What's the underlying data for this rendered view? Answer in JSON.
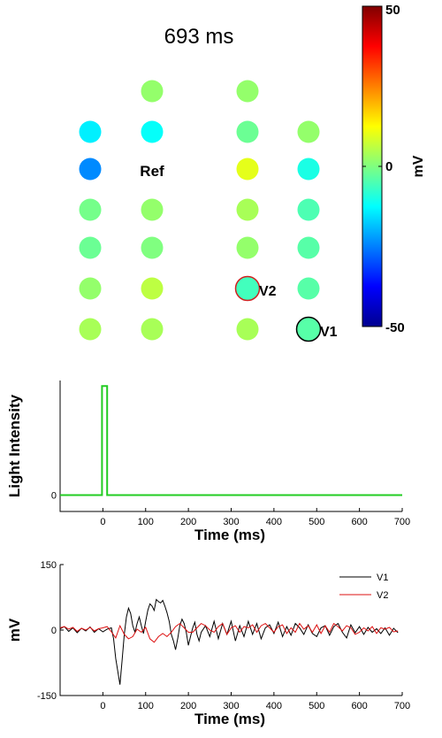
{
  "title": "693 ms",
  "electrode_map": {
    "ref_label": "Ref",
    "colorbar": {
      "max_label": "50",
      "mid_label": "0",
      "min_label": "-50",
      "unit_label": "mV",
      "min": -50,
      "max": 50
    },
    "electrodes": [
      {
        "name": "e-r1c2",
        "value": 2
      },
      {
        "name": "e-r1c3",
        "value": 2
      },
      {
        "name": "e-r2c1",
        "value": -14
      },
      {
        "name": "e-r2c2",
        "value": -12
      },
      {
        "name": "e-r2c3",
        "value": -2
      },
      {
        "name": "e-r2c4",
        "value": 2
      },
      {
        "name": "e-r3c1",
        "value": -24
      },
      {
        "name": "e-r3c3",
        "value": 10
      },
      {
        "name": "e-r3c4",
        "value": -10
      },
      {
        "name": "e-r4c1",
        "value": -1
      },
      {
        "name": "e-r4c2",
        "value": 2
      },
      {
        "name": "e-r4c3",
        "value": 4
      },
      {
        "name": "e-r4c4",
        "value": -5
      },
      {
        "name": "e-r5c1",
        "value": -2
      },
      {
        "name": "e-r5c2",
        "value": 0
      },
      {
        "name": "e-r5c3",
        "value": 2
      },
      {
        "name": "e-r5c4",
        "value": -4
      },
      {
        "name": "e-r6c1",
        "value": 2
      },
      {
        "name": "e-r6c2",
        "value": 6
      },
      {
        "name": "e-r6c3",
        "value": -6,
        "label": "V2",
        "ring": "#d02020"
      },
      {
        "name": "e-r6c4",
        "value": -4
      },
      {
        "name": "e-r7c1",
        "value": 4
      },
      {
        "name": "e-r7c2",
        "value": 4
      },
      {
        "name": "e-r7c3",
        "value": 4
      },
      {
        "name": "e-r7c4",
        "value": -4,
        "label": "V1",
        "ring": "#000000"
      }
    ]
  },
  "chart_data": [
    {
      "type": "line",
      "xlabel": "Time (ms)",
      "ylabel": "Light Intensity",
      "xlim": [
        -100,
        700
      ],
      "xticks": [
        0,
        100,
        200,
        300,
        400,
        500,
        600,
        700
      ],
      "yticks": [
        {
          "value": 0,
          "label": "0"
        }
      ],
      "ylim": [
        -0.15,
        1.05
      ],
      "series": [
        {
          "color": "#22cc22",
          "x": [
            -100,
            -2,
            -2,
            10,
            10,
            700
          ],
          "y": [
            0,
            0,
            1,
            1,
            0,
            0
          ]
        }
      ]
    },
    {
      "type": "line",
      "xlabel": "Time (ms)",
      "ylabel": "mV",
      "xlim": [
        -100,
        700
      ],
      "ylim": [
        -150,
        150
      ],
      "xticks": [
        0,
        100,
        200,
        300,
        400,
        500,
        600,
        700
      ],
      "yticks": [
        {
          "value": 150,
          "label": "150"
        },
        {
          "value": 0,
          "label": "0"
        },
        {
          "value": -150,
          "label": "-150"
        }
      ],
      "legend_position": "top-right",
      "series": [
        {
          "name": "V1",
          "color": "#000000",
          "x": [
            -100,
            -90,
            -80,
            -70,
            -60,
            -50,
            -40,
            -30,
            -20,
            -10,
            0,
            10,
            20,
            25,
            30,
            35,
            40,
            45,
            50,
            55,
            60,
            65,
            70,
            75,
            80,
            85,
            90,
            95,
            100,
            105,
            110,
            115,
            120,
            125,
            130,
            135,
            140,
            145,
            150,
            155,
            160,
            165,
            170,
            175,
            180,
            185,
            190,
            195,
            200,
            205,
            210,
            215,
            220,
            225,
            230,
            240,
            250,
            260,
            270,
            280,
            290,
            300,
            310,
            320,
            330,
            340,
            350,
            360,
            370,
            380,
            390,
            400,
            410,
            420,
            430,
            440,
            450,
            460,
            470,
            480,
            490,
            500,
            510,
            520,
            530,
            540,
            550,
            560,
            570,
            580,
            590,
            600,
            610,
            620,
            630,
            640,
            650,
            660,
            670,
            680,
            690
          ],
          "y": [
            3,
            8,
            -3,
            5,
            -6,
            4,
            -2,
            7,
            -5,
            3,
            -4,
            2,
            5,
            -20,
            -65,
            -95,
            -125,
            -70,
            -10,
            30,
            50,
            38,
            10,
            -5,
            15,
            30,
            10,
            -8,
            20,
            45,
            60,
            55,
            45,
            70,
            65,
            62,
            68,
            55,
            40,
            20,
            -10,
            -25,
            -45,
            -20,
            10,
            25,
            15,
            -5,
            -35,
            -15,
            5,
            18,
            -10,
            -25,
            -5,
            10,
            -15,
            20,
            -20,
            15,
            -10,
            20,
            -25,
            10,
            -15,
            20,
            -10,
            15,
            -20,
            5,
            12,
            -8,
            18,
            -15,
            8,
            -12,
            15,
            5,
            -10,
            12,
            -8,
            -15,
            5,
            10,
            -12,
            8,
            15,
            -5,
            -18,
            12,
            -6,
            8,
            -10,
            6,
            -5,
            3,
            -8,
            5,
            -12,
            4,
            -6
          ]
        },
        {
          "name": "V2",
          "color": "#dd1111",
          "x": [
            -100,
            -90,
            -80,
            -70,
            -60,
            -50,
            -40,
            -30,
            -20,
            -10,
            0,
            10,
            20,
            30,
            40,
            50,
            60,
            70,
            80,
            90,
            100,
            110,
            120,
            130,
            140,
            150,
            160,
            170,
            180,
            190,
            200,
            210,
            220,
            230,
            240,
            250,
            260,
            270,
            280,
            290,
            300,
            310,
            320,
            330,
            340,
            350,
            360,
            370,
            380,
            390,
            400,
            410,
            420,
            430,
            440,
            450,
            460,
            470,
            480,
            490,
            500,
            510,
            520,
            530,
            540,
            550,
            560,
            570,
            580,
            590,
            600,
            610,
            620,
            630,
            640,
            650,
            660,
            670,
            680,
            690
          ],
          "y": [
            5,
            8,
            2,
            6,
            -3,
            4,
            0,
            6,
            -2,
            3,
            5,
            8,
            -4,
            -18,
            10,
            -10,
            -20,
            -15,
            2,
            -5,
            6,
            -20,
            -28,
            -15,
            -8,
            -15,
            -5,
            8,
            15,
            5,
            -5,
            -5,
            5,
            15,
            10,
            0,
            -5,
            8,
            15,
            -10,
            5,
            10,
            -5,
            8,
            5,
            12,
            -5,
            10,
            15,
            5,
            -5,
            8,
            12,
            -8,
            5,
            -5,
            15,
            2,
            10,
            -5,
            12,
            -8,
            10,
            -5,
            15,
            8,
            -2,
            10,
            5,
            -10,
            -5,
            5,
            -2,
            8,
            -8,
            5,
            2,
            6,
            -4,
            -2
          ]
        }
      ]
    }
  ]
}
